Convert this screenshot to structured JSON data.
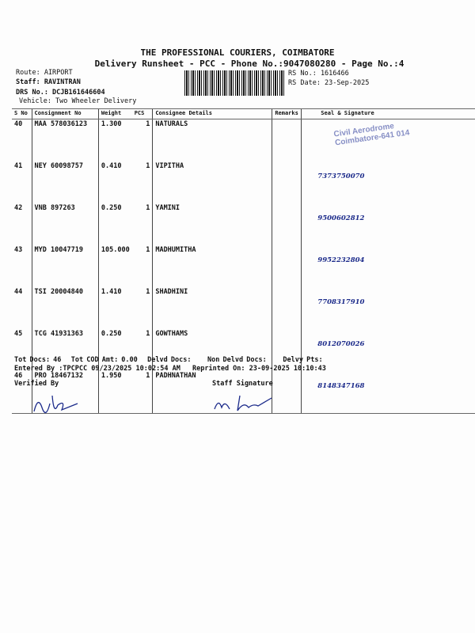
{
  "header": {
    "company": "THE PROFESSIONAL COURIERS, COIMBATORE",
    "subtitle": "Delivery Runsheet - PCC - Phone No.:9047080280 - Page No.:4",
    "route": "Route: AIRPORT",
    "staff": "Staff: RAVINTRAN",
    "drs": "DRS No.: DCJB161646604",
    "vehicle": "Vehicle: Two Wheeler Delivery",
    "rs_no": "RS No.: 1616466",
    "rs_date": "RS Date: 23-Sep-2025"
  },
  "table": {
    "columns": [
      "S No",
      "Consignment No",
      "Weight",
      "PCS",
      "Consignee Details",
      "Remarks",
      "Seal & Signature"
    ],
    "rows": [
      {
        "sno": "40",
        "cons": "MAA 578036123",
        "weight": "1.300",
        "pcs": "1",
        "consignee": "NATURALS",
        "remarks": "",
        "signature": ""
      },
      {
        "sno": "41",
        "cons": "NEY 60098757",
        "weight": "0.410",
        "pcs": "1",
        "consignee": "VIPITHA",
        "remarks": "",
        "signature": "7373750070"
      },
      {
        "sno": "42",
        "cons": "VNB 897263",
        "weight": "0.250",
        "pcs": "1",
        "consignee": "YAMINI",
        "remarks": "",
        "signature": "9500602812"
      },
      {
        "sno": "43",
        "cons": "MYD 10047719",
        "weight": "105.000",
        "pcs": "1",
        "consignee": "MADHUMITHA",
        "remarks": "",
        "signature": "9952232804"
      },
      {
        "sno": "44",
        "cons": "TSI 20004840",
        "weight": "1.410",
        "pcs": "1",
        "consignee": "SHADHINI",
        "remarks": "",
        "signature": "7708317910"
      },
      {
        "sno": "45",
        "cons": "TCG 41931363",
        "weight": "0.250",
        "pcs": "1",
        "consignee": "GOWTHAMS",
        "remarks": "",
        "signature": "8012070026"
      },
      {
        "sno": "46",
        "cons": "PRO 18467132",
        "weight": "1.950",
        "pcs": "1",
        "consignee": "PADHNATHAN",
        "remarks": "",
        "signature": "8148347168"
      }
    ]
  },
  "stamp": {
    "line1": "Civil Aerodrome",
    "line2": "Coimbatore-641 014"
  },
  "footer": {
    "tot_docs": "Tot Docs:  46",
    "cod": "Tot COD Amt:    0.00",
    "delvd": "Delvd Docs:",
    "non_delvd": "Non Delvd Docs:",
    "pts": "Delvy Pts:",
    "entered": "Entered By :TPCPCC 09/23/2025 10:02:54 AM",
    "reprinted": "Reprinted On: 23-09-2025 10:10:43",
    "verified": "Verified By",
    "staff_sig": "Staff Signature"
  }
}
